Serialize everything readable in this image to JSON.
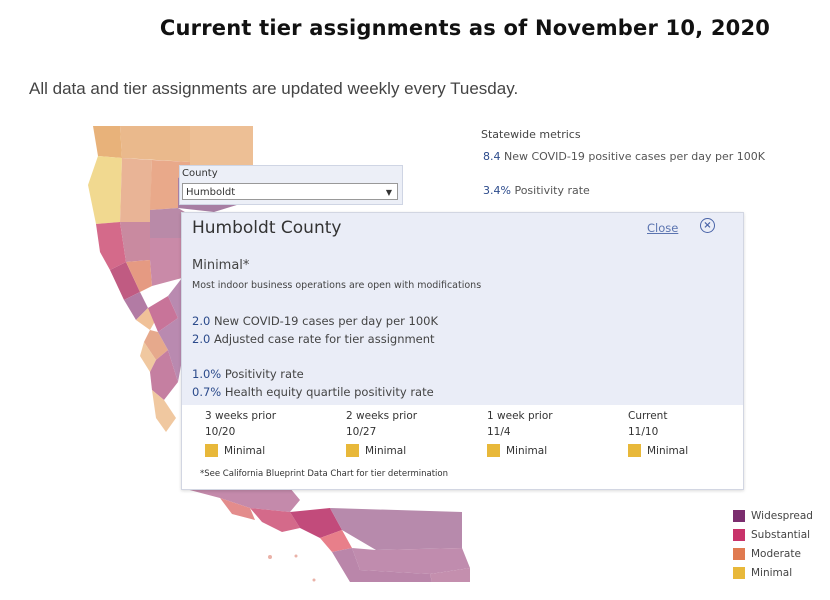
{
  "page": {
    "title": "Current tier assignments as of November 10, 2020",
    "subtitle": "All data and tier assignments are updated weekly every Tuesday."
  },
  "statewide": {
    "label": "Statewide metrics",
    "cases_value": "8.4",
    "cases_text": "New COVID-19 positive cases per day per 100K",
    "positivity_value": "3.4%",
    "positivity_text": "Positivity rate"
  },
  "county_filter": {
    "label": "County",
    "selected": "Humboldt"
  },
  "popup": {
    "title": "Humboldt County",
    "close_label": "Close",
    "tier": "Minimal*",
    "tier_description": "Most indoor business operations are open with modifications",
    "stats": [
      {
        "value": "2.0",
        "text": "New COVID-19 cases per day per 100K"
      },
      {
        "value": "2.0",
        "text": "Adjusted case rate for tier assignment"
      },
      {
        "value": "1.0%",
        "text": "Positivity rate"
      },
      {
        "value": "0.7%",
        "text": "Health equity quartile positivity rate"
      }
    ],
    "history": [
      {
        "label": "3 weeks prior",
        "date": "10/20",
        "tier": "Minimal"
      },
      {
        "label": "2 weeks prior",
        "date": "10/27",
        "tier": "Minimal"
      },
      {
        "label": "1 week prior",
        "date": "11/4",
        "tier": "Minimal"
      },
      {
        "label": "Current",
        "date": "11/10",
        "tier": "Minimal"
      }
    ],
    "footnote": "*See California Blueprint Data Chart for tier determination"
  },
  "legend": [
    {
      "label": "Widespread",
      "color": "#7b2d6e"
    },
    {
      "label": "Substantial",
      "color": "#c8336a"
    },
    {
      "label": "Moderate",
      "color": "#e07a50"
    },
    {
      "label": "Minimal",
      "color": "#e8b83a"
    }
  ],
  "colors": {
    "minimal_swatch": "#e8b83a",
    "accent": "#2b4a8b"
  }
}
